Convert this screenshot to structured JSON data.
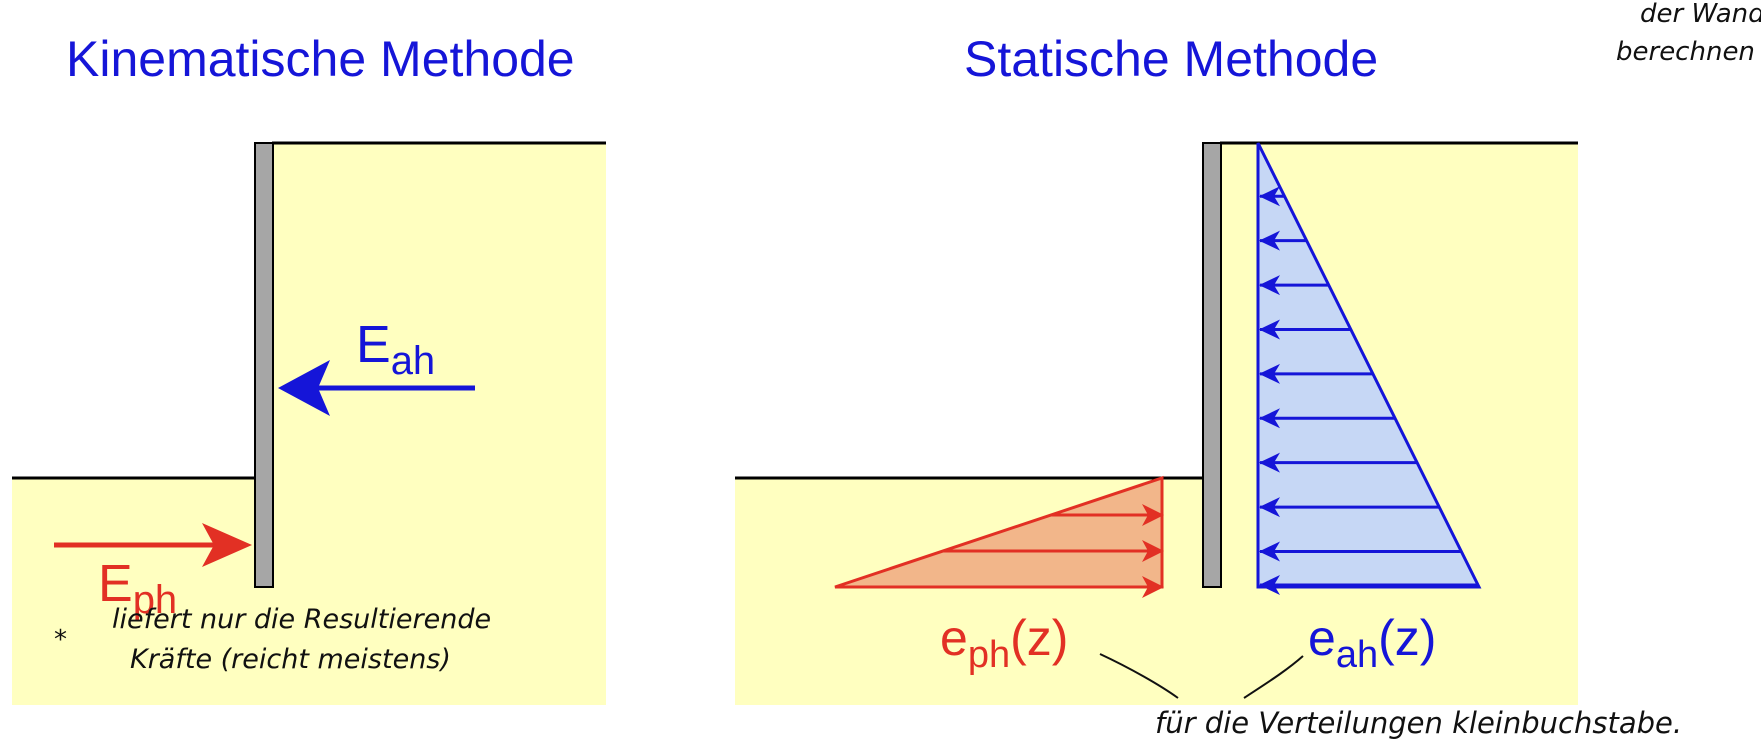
{
  "left_panel": {
    "title": "Kinematische Methode",
    "force_active": {
      "main": "E",
      "sub": "ah"
    },
    "force_passive": {
      "main": "E",
      "sub": "ph"
    },
    "note_line1": "liefert nur die Resultierende",
    "note_line2": "Kräfte (reicht meistens)"
  },
  "right_panel": {
    "title": "Statische Methode",
    "dist_passive": {
      "main": "e",
      "sub": "ph",
      "arg": "(z)"
    },
    "dist_active": {
      "main": "e",
      "sub": "ah",
      "arg": "(z)"
    },
    "note": "für die Verteilungen kleinbuchstabe."
  },
  "corner_note": {
    "line1": "der Wand",
    "line2": "berechnen"
  },
  "colors": {
    "soil": "#ffffc0",
    "wall": "#a6a6a6",
    "active": "#1515d8",
    "active_fill": "#c6d7f5",
    "passive": "#e23024",
    "passive_fill": "#f2b68a",
    "title": "#1515d8"
  }
}
